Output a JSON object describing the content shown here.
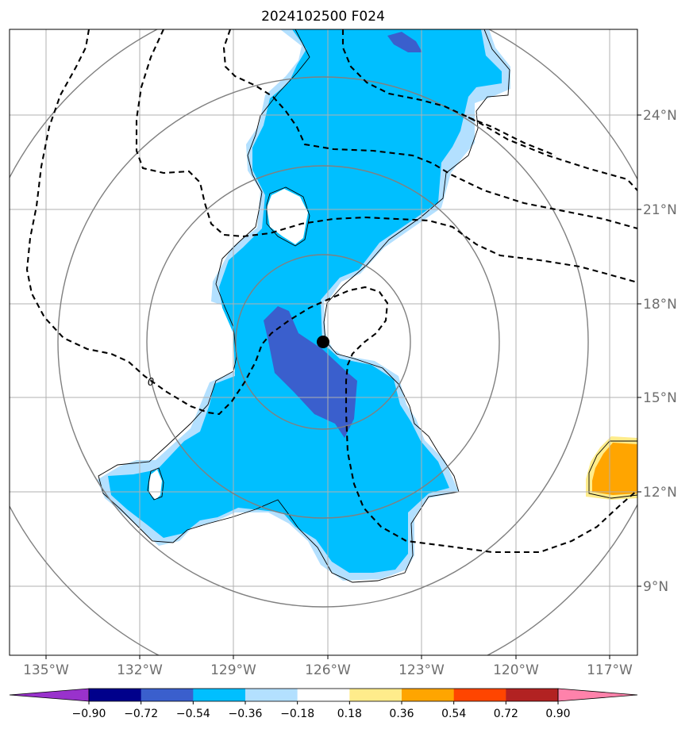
{
  "map": {
    "title": "2024102500 F024",
    "lon_labels": [
      "135°W",
      "132°W",
      "129°W",
      "126°W",
      "123°W",
      "120°W",
      "117°W"
    ],
    "lat_labels": [
      "24°N",
      "21°N",
      "18°N",
      "15°N",
      "12°N",
      "9°N"
    ],
    "contour_label": "0",
    "center_marker": {
      "lon": -126.1,
      "lat": 16.7
    }
  },
  "colorbar": {
    "ticks": [
      "−0.90",
      "−0.72",
      "−0.54",
      "−0.36",
      "−0.18",
      "0.18",
      "0.36",
      "0.54",
      "0.72",
      "0.90"
    ],
    "colors": [
      "#9932cc",
      "#00008b",
      "#3a5fcd",
      "#00bfff",
      "#b3e0ff",
      "#ffffff",
      "#ffec8b",
      "#ffa500",
      "#ff4500",
      "#b22222",
      "#ff82ab"
    ]
  }
}
